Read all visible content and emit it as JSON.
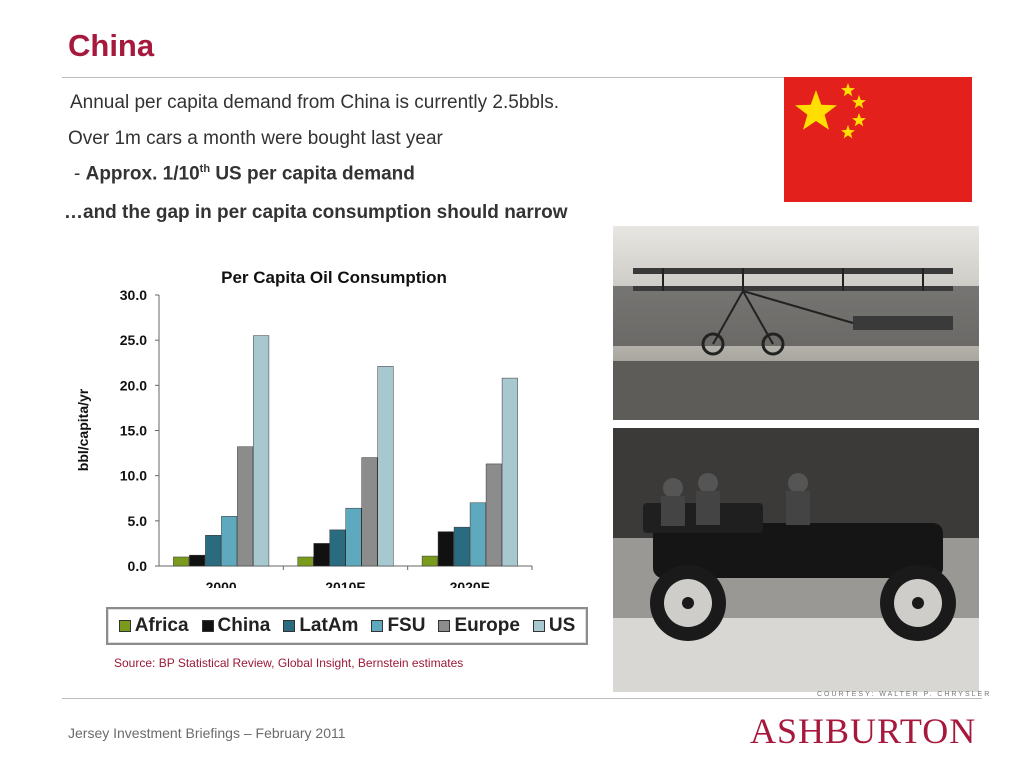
{
  "slide": {
    "title": "China",
    "bullet1": "Annual per capita demand from China is currently 2.5bbls.",
    "bullet2": "Over 1m cars a month were bought last year",
    "sub_dash": "- ",
    "sub_text": "Approx. 1/10",
    "sub_sup": "th",
    "sub_rest": " US per capita demand",
    "emphasis": "…and the gap in per capita consumption should narrow",
    "source": "Source: BP Statistical Review, Global Insight, Bernstein estimates",
    "footer": "Jersey Investment Briefings – February 2011",
    "logo": "ASHBURTON",
    "photo_credit": "COURTESY: WALTER P. CHRYSLER"
  },
  "colors": {
    "title": "#a6193c",
    "flag_red": "#e3201b",
    "flag_star": "#ffde00"
  },
  "icons": [
    "china-flag-icon",
    "biplane-photo",
    "vintage-car-photo"
  ],
  "chart_data": {
    "type": "bar",
    "title": "Per Capita Oil Consumption",
    "ylabel": "bbl/capita/yr",
    "xlabel": "",
    "categories": [
      "2000",
      "2010E",
      "2020E"
    ],
    "ylim": [
      0,
      30
    ],
    "yticks": [
      "0.0",
      "5.0",
      "10.0",
      "15.0",
      "20.0",
      "25.0",
      "30.0"
    ],
    "legend_position": "bottom",
    "grid": false,
    "series": [
      {
        "name": "Africa",
        "color": "#7a9a1e",
        "values": [
          1.0,
          1.0,
          1.1
        ]
      },
      {
        "name": "China",
        "color": "#111111",
        "values": [
          1.2,
          2.5,
          3.8
        ]
      },
      {
        "name": "LatAm",
        "color": "#2b6b80",
        "values": [
          3.4,
          4.0,
          4.3
        ]
      },
      {
        "name": "FSU",
        "color": "#5fa9bf",
        "values": [
          5.5,
          6.4,
          7.0
        ]
      },
      {
        "name": "Europe",
        "color": "#8c8c8c",
        "values": [
          13.2,
          12.0,
          11.3
        ]
      },
      {
        "name": "US",
        "color": "#a8c8d0",
        "values": [
          25.5,
          22.1,
          20.8
        ]
      }
    ]
  }
}
